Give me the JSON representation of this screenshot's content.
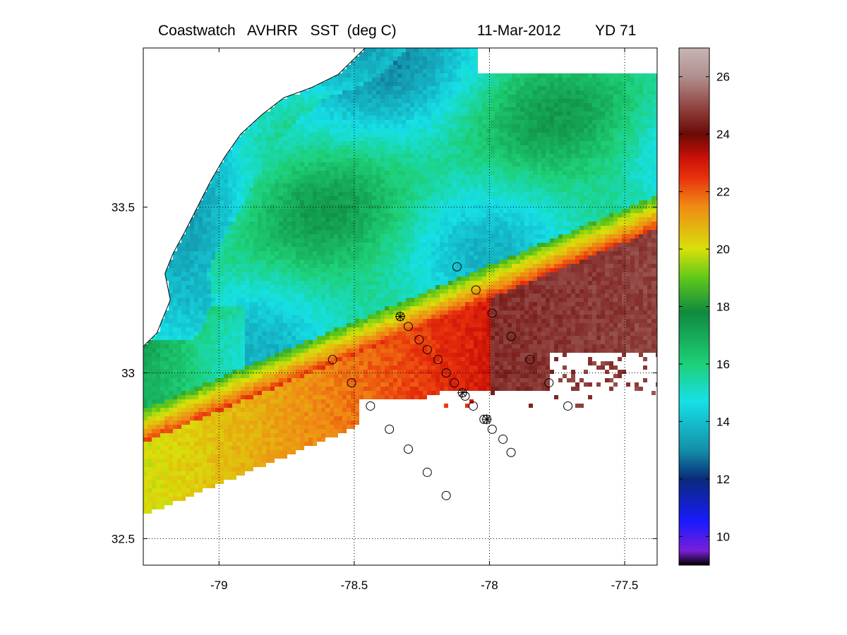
{
  "figure": {
    "title_left": "Coastwatch   AVHRR   SST  (deg C)",
    "title_date": "11-Mar-2012",
    "title_yd": "YD 71"
  },
  "map": {
    "lon_range": [
      -79.28,
      -77.38
    ],
    "lat_range": [
      32.42,
      33.98
    ],
    "lon_ticks": [
      {
        "value": -79.0,
        "label": "-79"
      },
      {
        "value": -78.5,
        "label": "-78.5"
      },
      {
        "value": -78.0,
        "label": "-78"
      },
      {
        "value": -77.5,
        "label": "-77.5"
      }
    ],
    "lat_ticks": [
      {
        "value": 33.5,
        "label": "33.5"
      },
      {
        "value": 33.0,
        "label": "33"
      },
      {
        "value": 32.5,
        "label": "32.5"
      }
    ],
    "grid": true,
    "grid_style": "dotted",
    "coastline": [
      [
        -78.46,
        33.98
      ],
      [
        -78.56,
        33.9
      ],
      [
        -78.66,
        33.86
      ],
      [
        -78.76,
        33.83
      ],
      [
        -78.84,
        33.78
      ],
      [
        -78.92,
        33.72
      ],
      [
        -78.98,
        33.65
      ],
      [
        -79.03,
        33.58
      ],
      [
        -79.08,
        33.5
      ],
      [
        -79.13,
        33.42
      ],
      [
        -79.17,
        33.36
      ],
      [
        -79.2,
        33.3
      ],
      [
        -79.18,
        33.22
      ],
      [
        -79.23,
        33.12
      ],
      [
        -79.28,
        33.08
      ]
    ],
    "stations": [
      {
        "lon": -78.12,
        "lat": 33.32,
        "marker": "circle"
      },
      {
        "lon": -78.05,
        "lat": 33.25,
        "marker": "circle"
      },
      {
        "lon": -77.99,
        "lat": 33.18,
        "marker": "circle"
      },
      {
        "lon": -77.92,
        "lat": 33.11,
        "marker": "circle"
      },
      {
        "lon": -77.85,
        "lat": 33.04,
        "marker": "circle"
      },
      {
        "lon": -77.78,
        "lat": 32.97,
        "marker": "circle"
      },
      {
        "lon": -77.71,
        "lat": 32.9,
        "marker": "circle"
      },
      {
        "lon": -78.33,
        "lat": 33.17,
        "marker": "circle-star"
      },
      {
        "lon": -78.3,
        "lat": 33.14,
        "marker": "circle"
      },
      {
        "lon": -78.26,
        "lat": 33.1,
        "marker": "circle"
      },
      {
        "lon": -78.23,
        "lat": 33.07,
        "marker": "circle"
      },
      {
        "lon": -78.19,
        "lat": 33.04,
        "marker": "circle"
      },
      {
        "lon": -78.16,
        "lat": 33.0,
        "marker": "circle"
      },
      {
        "lon": -78.13,
        "lat": 32.97,
        "marker": "circle"
      },
      {
        "lon": -78.1,
        "lat": 32.94,
        "marker": "circle-star"
      },
      {
        "lon": -78.09,
        "lat": 32.93,
        "marker": "circle"
      },
      {
        "lon": -78.06,
        "lat": 32.9,
        "marker": "circle"
      },
      {
        "lon": -78.02,
        "lat": 32.86,
        "marker": "circle"
      },
      {
        "lon": -78.01,
        "lat": 32.86,
        "marker": "circle-star"
      },
      {
        "lon": -77.99,
        "lat": 32.83,
        "marker": "circle"
      },
      {
        "lon": -77.95,
        "lat": 32.8,
        "marker": "circle"
      },
      {
        "lon": -77.92,
        "lat": 32.76,
        "marker": "circle"
      },
      {
        "lon": -78.58,
        "lat": 33.04,
        "marker": "circle"
      },
      {
        "lon": -78.51,
        "lat": 32.97,
        "marker": "circle"
      },
      {
        "lon": -78.44,
        "lat": 32.9,
        "marker": "circle"
      },
      {
        "lon": -78.37,
        "lat": 32.83,
        "marker": "circle"
      },
      {
        "lon": -78.3,
        "lat": 32.77,
        "marker": "circle"
      },
      {
        "lon": -78.23,
        "lat": 32.7,
        "marker": "circle"
      },
      {
        "lon": -78.16,
        "lat": 32.63,
        "marker": "circle"
      }
    ]
  },
  "colorbar": {
    "min": 9,
    "max": 27,
    "ticks": [
      {
        "value": 10,
        "label": "10"
      },
      {
        "value": 12,
        "label": "12"
      },
      {
        "value": 14,
        "label": "14"
      },
      {
        "value": 16,
        "label": "16"
      },
      {
        "value": 18,
        "label": "18"
      },
      {
        "value": 20,
        "label": "20"
      },
      {
        "value": 22,
        "label": "22"
      },
      {
        "value": 24,
        "label": "24"
      },
      {
        "value": 26,
        "label": "26"
      }
    ],
    "colors": [
      "#000000",
      "#7a1fd6",
      "#1a1aff",
      "#0a2a7a",
      "#138fa8",
      "#16e0e6",
      "#1ed078",
      "#0f8a3e",
      "#5fc81a",
      "#d8e00a",
      "#f08a14",
      "#e8300c",
      "#c81008",
      "#6a0a06",
      "#8c3a36",
      "#b0908e",
      "#c8b4b4"
    ],
    "color_values": [
      9.0,
      9.5,
      10.5,
      12.0,
      13.0,
      14.7,
      16.0,
      17.8,
      19.0,
      20.0,
      21.5,
      22.5,
      23.2,
      24.0,
      24.8,
      26.0,
      27.0
    ]
  }
}
